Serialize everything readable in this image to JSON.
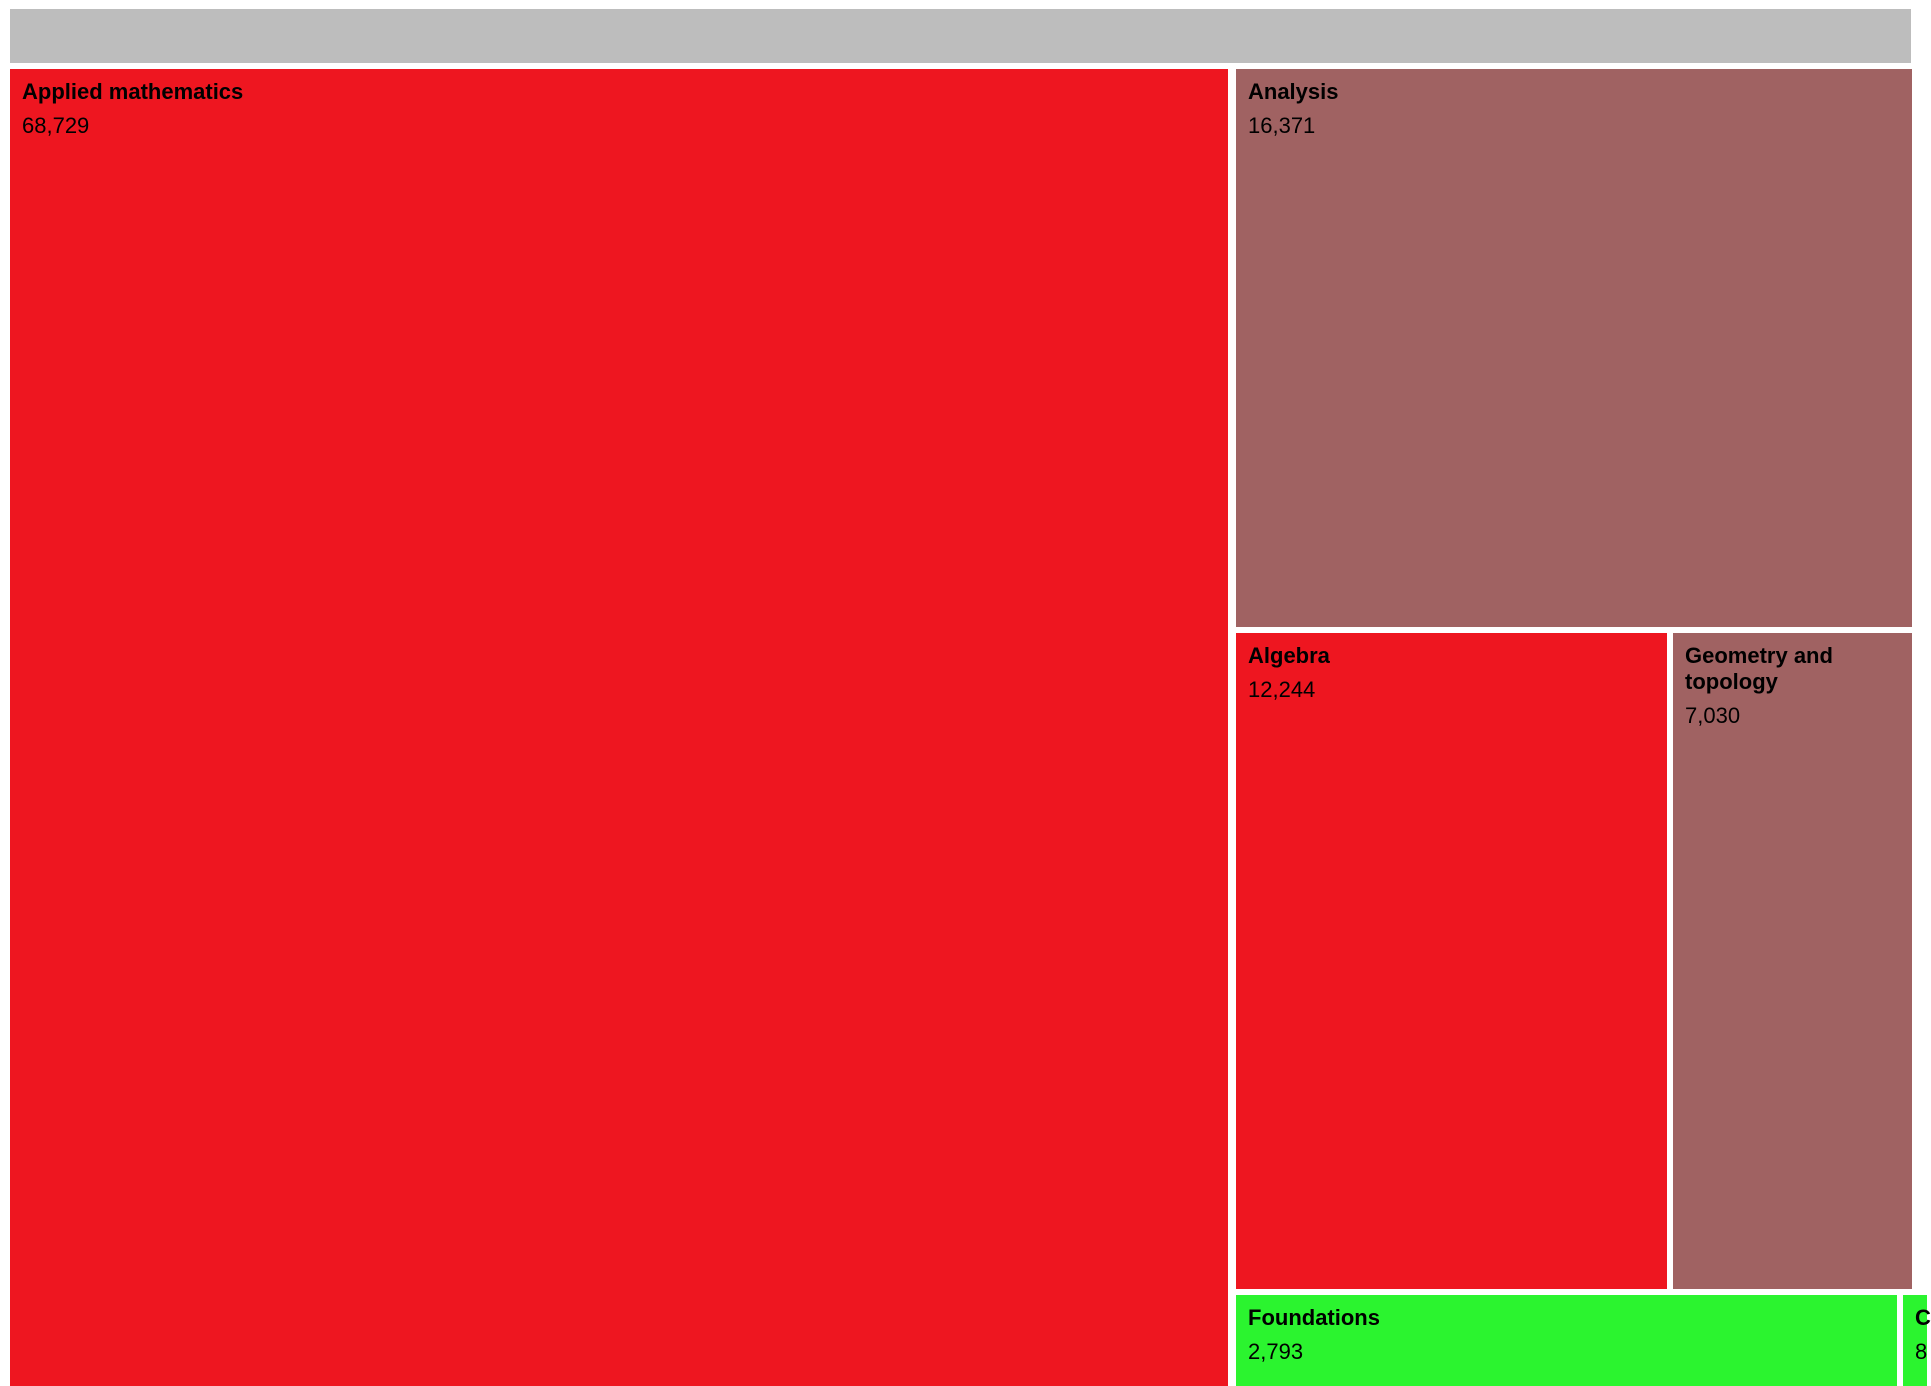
{
  "chart_data": {
    "type": "treemap",
    "root_color": "#bdbdbd",
    "nodes": [
      {
        "name": "Applied mathematics",
        "value": 68729,
        "value_label": "68,729",
        "color": "#ee1620"
      },
      {
        "name": "Analysis",
        "value": 16371,
        "value_label": "16,371",
        "color": "#a06262"
      },
      {
        "name": "Algebra",
        "value": 12244,
        "value_label": "12,244",
        "color": "#ee1620"
      },
      {
        "name": "Geometry and topology",
        "value": 7030,
        "value_label": "7,030",
        "color": "#a06262"
      },
      {
        "name": "Foundations",
        "value": 2793,
        "value_label": "2,793",
        "color": "#2bf42f"
      },
      {
        "name": "C",
        "value": null,
        "value_label": "8",
        "color": "#2bf42f"
      }
    ]
  }
}
